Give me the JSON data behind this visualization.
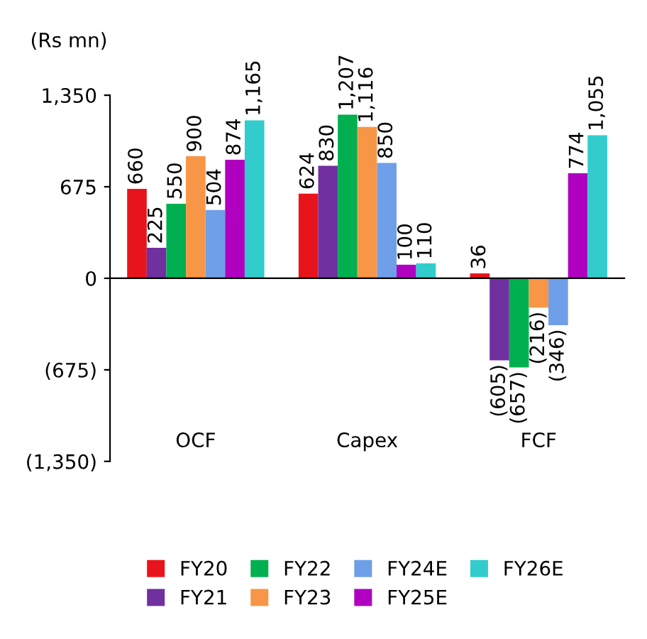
{
  "chart_data": {
    "type": "bar",
    "ylabel": "(Rs mn)",
    "categories": [
      "OCF",
      "Capex",
      "FCF"
    ],
    "series": [
      {
        "name": "FY20",
        "color": "#e8141c",
        "values": [
          660,
          624,
          36
        ],
        "value_labels": [
          "660",
          "624",
          "36"
        ]
      },
      {
        "name": "FY21",
        "color": "#7030a0",
        "values": [
          225,
          830,
          -605
        ],
        "value_labels": [
          "225",
          "830",
          "(605)"
        ]
      },
      {
        "name": "FY22",
        "color": "#00b050",
        "values": [
          550,
          1207,
          -657
        ],
        "value_labels": [
          "550",
          "1,207",
          "(657)"
        ]
      },
      {
        "name": "FY23",
        "color": "#f79646",
        "values": [
          900,
          1116,
          -216
        ],
        "value_labels": [
          "900",
          "1,116",
          "(216)"
        ]
      },
      {
        "name": "FY24E",
        "color": "#6f9fe8",
        "values": [
          504,
          850,
          -346
        ],
        "value_labels": [
          "504",
          "850",
          "(346)"
        ]
      },
      {
        "name": "FY25E",
        "color": "#b000c0",
        "values": [
          874,
          100,
          774
        ],
        "value_labels": [
          "874",
          "100",
          "774"
        ]
      },
      {
        "name": "FY26E",
        "color": "#33cccc",
        "values": [
          1165,
          110,
          1055
        ],
        "value_labels": [
          "1,165",
          "110",
          "1,055"
        ]
      }
    ],
    "ylim": [
      -1350,
      1350
    ],
    "yticks": [
      {
        "value": 1350,
        "label": "1,350"
      },
      {
        "value": 675,
        "label": "675"
      },
      {
        "value": 0,
        "label": "0"
      },
      {
        "value": -675,
        "label": "(675)"
      },
      {
        "value": -1350,
        "label": "(1,350)"
      }
    ],
    "legend": "bottom"
  }
}
